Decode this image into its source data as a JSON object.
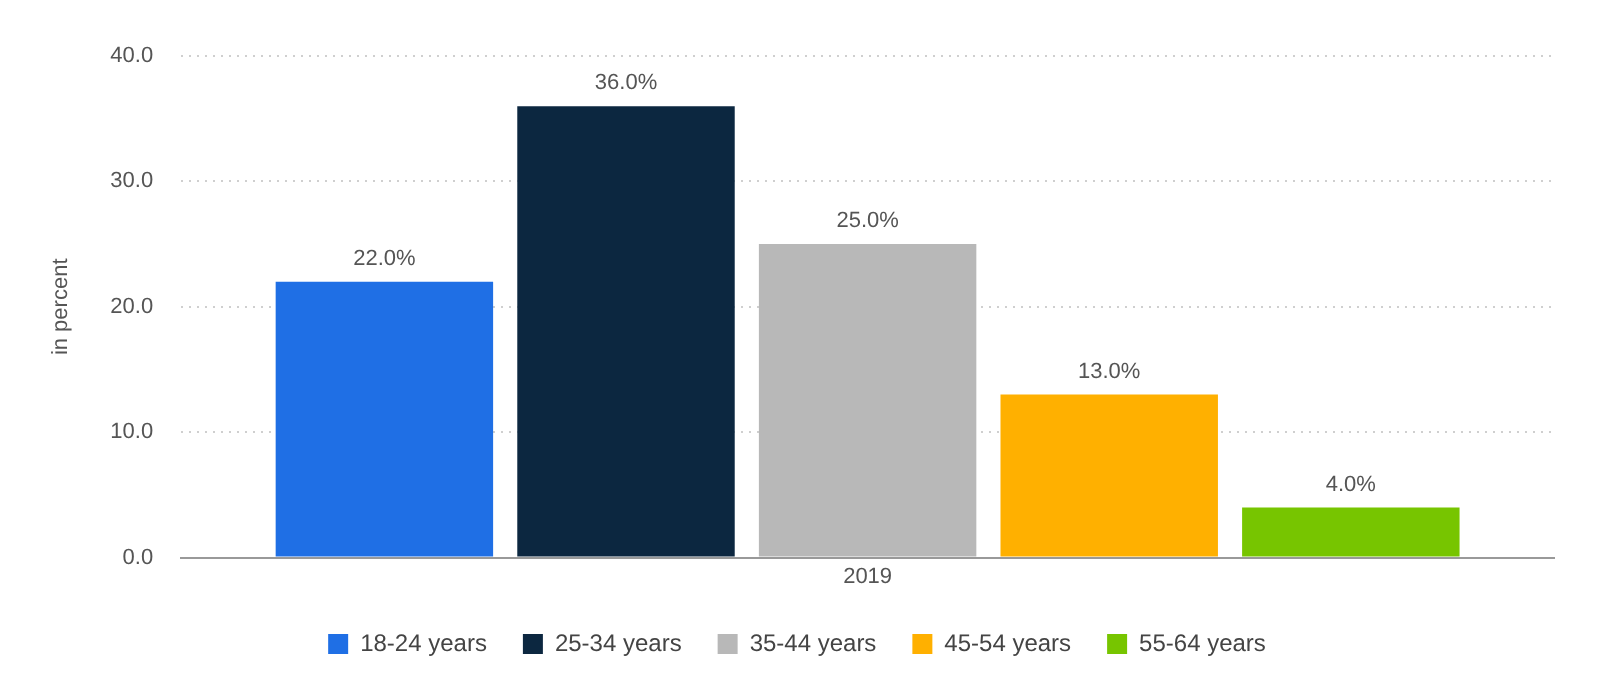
{
  "chart_data": {
    "type": "bar",
    "ylabel": "in percent",
    "categories": [
      "2019"
    ],
    "series": [
      {
        "name": "18-24 years",
        "color": "#1f6fe5",
        "values": [
          22.0
        ],
        "value_labels": [
          "22.0%"
        ]
      },
      {
        "name": "25-34 years",
        "color": "#0c2740",
        "values": [
          36.0
        ],
        "value_labels": [
          "36.0%"
        ]
      },
      {
        "name": "35-44 years",
        "color": "#b8b8b8",
        "values": [
          25.0
        ],
        "value_labels": [
          "25.0%"
        ]
      },
      {
        "name": "45-54 years",
        "color": "#ffb000",
        "values": [
          13.0
        ],
        "value_labels": [
          "13.0%"
        ]
      },
      {
        "name": "55-64 years",
        "color": "#77c500",
        "values": [
          4.0
        ],
        "value_labels": [
          "4.0%"
        ]
      }
    ],
    "ylim": [
      0,
      40
    ],
    "yticks": [
      {
        "value": 0,
        "label": "0.0"
      },
      {
        "value": 10,
        "label": "10.0"
      },
      {
        "value": 20,
        "label": "20.0"
      },
      {
        "value": 30,
        "label": "30.0"
      },
      {
        "value": 40,
        "label": "40.0"
      }
    ],
    "grid": "y",
    "legend": "bottom"
  }
}
